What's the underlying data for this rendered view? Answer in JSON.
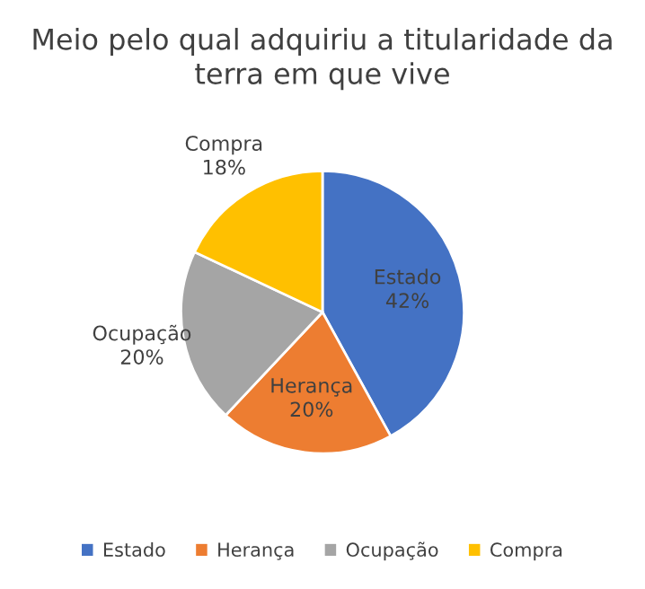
{
  "chart_data": {
    "type": "pie",
    "title": "Meio pelo qual adquiriu a titularidade da terra em que vive",
    "categories": [
      "Estado",
      "Herança",
      "Ocupação",
      "Compra"
    ],
    "values": [
      42,
      20,
      20,
      18
    ],
    "value_labels": [
      "42%",
      "20%",
      "20%",
      "18%"
    ],
    "colors": [
      "#4472c4",
      "#ed7d31",
      "#a5a5a5",
      "#ffc000"
    ],
    "legend": "bottom"
  }
}
